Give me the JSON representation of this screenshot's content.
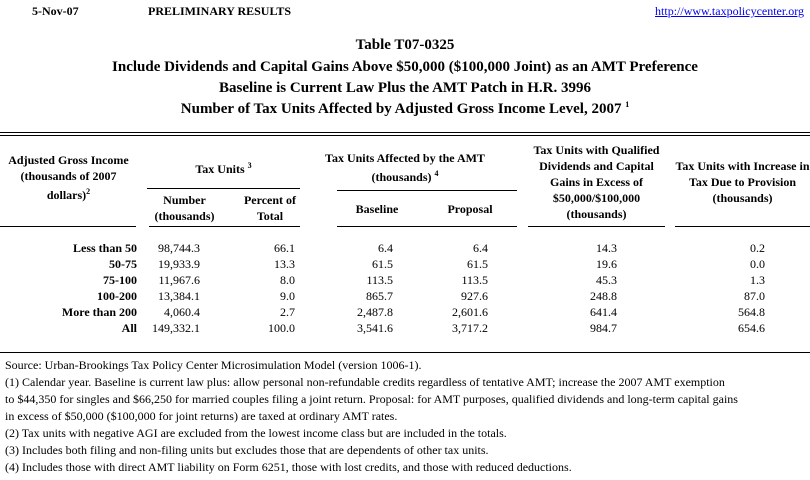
{
  "top": {
    "date": "5-Nov-07",
    "status": "PRELIMINARY RESULTS",
    "url": "http://www.taxpolicycenter.org"
  },
  "title": {
    "line1": "Table T07-0325",
    "line2": "Include Dividends and Capital Gains Above $50,000 ($100,000 Joint) as an AMT Preference",
    "line3": "Baseline is Current Law Plus the AMT Patch in H.R. 3996",
    "line4": "Number of Tax Units Affected by Adjusted Gross Income Level, 2007",
    "line4_note": "1"
  },
  "headers": {
    "agi": "Adjusted Gross Income (thousands of 2007 dollars)",
    "agi_note": "2",
    "tax_units": "Tax Units",
    "tax_units_note": "3",
    "number": "Number (thousands)",
    "percent": "Percent of Total",
    "amt": "Tax Units Affected by the AMT (thousands)",
    "amt_note": "4",
    "baseline": "Baseline",
    "proposal": "Proposal",
    "qualified": "Tax Units with Qualified Dividends and Capital Gains in Excess of $50,000/$100,000 (thousands)",
    "increase": "Tax Units with Increase in Tax Due to Provision (thousands)"
  },
  "rows": [
    {
      "label": "Less than 50",
      "number": "98,744.3",
      "percent": "66.1",
      "baseline": "6.4",
      "proposal": "6.4",
      "qualified": "14.3",
      "increase": "0.2"
    },
    {
      "label": "50-75",
      "number": "19,933.9",
      "percent": "13.3",
      "baseline": "61.5",
      "proposal": "61.5",
      "qualified": "19.6",
      "increase": "0.0"
    },
    {
      "label": "75-100",
      "number": "11,967.6",
      "percent": "8.0",
      "baseline": "113.5",
      "proposal": "113.5",
      "qualified": "45.3",
      "increase": "1.3"
    },
    {
      "label": "100-200",
      "number": "13,384.1",
      "percent": "9.0",
      "baseline": "865.7",
      "proposal": "927.6",
      "qualified": "248.8",
      "increase": "87.0"
    },
    {
      "label": "More than 200",
      "number": "4,060.4",
      "percent": "2.7",
      "baseline": "2,487.8",
      "proposal": "2,601.6",
      "qualified": "641.4",
      "increase": "564.8"
    },
    {
      "label": "All",
      "number": "149,332.1",
      "percent": "100.0",
      "baseline": "3,541.6",
      "proposal": "3,717.2",
      "qualified": "984.7",
      "increase": "654.6"
    }
  ],
  "notes": [
    "Source: Urban-Brookings Tax Policy Center Microsimulation Model (version 1006-1).",
    "(1) Calendar year. Baseline is current law plus: allow personal non-refundable credits regardless of tentative AMT; increase the 2007 AMT exemption",
    "to $44,350 for singles and $66,250 for married couples filing a joint return.  Proposal: for AMT purposes, qualified dividends and long-term capital gains",
    "in excess of $50,000 ($100,000 for joint returns) are taxed at ordinary AMT rates.",
    "(2) Tax units with negative AGI are excluded from the lowest income class but are included in the totals.",
    "(3) Includes both filing and non-filing units but excludes those that are dependents of other tax units.",
    "(4) Includes those with direct AMT liability on Form 6251, those with lost credits, and those with reduced deductions."
  ]
}
